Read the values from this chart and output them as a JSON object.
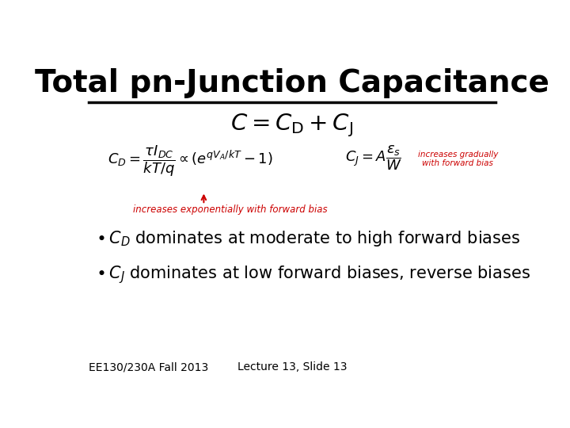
{
  "title": "Total pn-Junction Capacitance",
  "title_fontsize": 28,
  "title_fontweight": "bold",
  "bg_color": "#ffffff",
  "title_color": "#000000",
  "line_color": "#000000",
  "red_color": "#cc0000",
  "black_color": "#000000",
  "red_annotation_below": "increases exponentially with forward bias",
  "red_annotation_right1": "increases gradually",
  "red_annotation_right2": "with forward bias",
  "footer_left": "EE130/230A Fall 2013",
  "footer_right": "Lecture 13, Slide 13",
  "footer_fontsize": 10
}
